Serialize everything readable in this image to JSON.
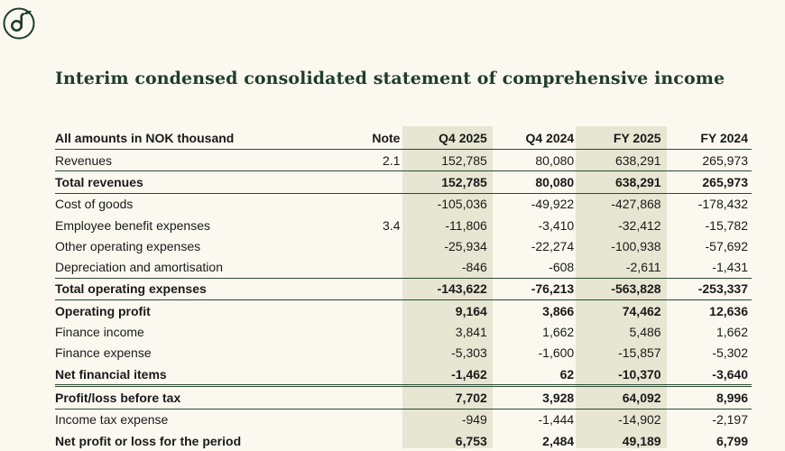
{
  "title": "Interim condensed consolidated statement of comprehensive income",
  "header": {
    "label": "All amounts in NOK thousand",
    "note": "Note",
    "cols": [
      "Q4 2025",
      "Q4 2024",
      "FY 2025",
      "FY 2024"
    ]
  },
  "rows": [
    {
      "label": "Revenues",
      "note": "2.1",
      "values": [
        "152,785",
        "80,080",
        "638,291",
        "265,973"
      ],
      "bold": false
    },
    {
      "label": "Total revenues",
      "note": "",
      "values": [
        "152,785",
        "80,080",
        "638,291",
        "265,973"
      ],
      "bold": true
    },
    {
      "label": "Cost of goods",
      "note": "",
      "values": [
        "-105,036",
        "-49,922",
        "-427,868",
        "-178,432"
      ],
      "bold": false
    },
    {
      "label": "Employee benefit expenses",
      "note": "3.4",
      "values": [
        "-11,806",
        "-3,410",
        "-32,412",
        "-15,782"
      ],
      "bold": false
    },
    {
      "label": "Other operating expenses",
      "note": "",
      "values": [
        "-25,934",
        "-22,274",
        "-100,938",
        "-57,692"
      ],
      "bold": false
    },
    {
      "label": "Depreciation and amortisation",
      "note": "",
      "values": [
        "-846",
        "-608",
        "-2,611",
        "-1,431"
      ],
      "bold": false
    },
    {
      "label": "Total operating expenses",
      "note": "",
      "values": [
        "-143,622",
        "-76,213",
        "-563,828",
        "-253,337"
      ],
      "bold": true
    },
    {
      "label": "Operating profit",
      "note": "",
      "values": [
        "9,164",
        "3,866",
        "74,462",
        "12,636"
      ],
      "bold": true
    },
    {
      "label": "Finance income",
      "note": "",
      "values": [
        "3,841",
        "1,662",
        "5,486",
        "1,662"
      ],
      "bold": false
    },
    {
      "label": "Finance expense",
      "note": "",
      "values": [
        "-5,303",
        "-1,600",
        "-15,857",
        "-5,302"
      ],
      "bold": false
    },
    {
      "label": "Net financial items",
      "note": "",
      "values": [
        "-1,462",
        "62",
        "-10,370",
        "-3,640"
      ],
      "bold": true
    },
    {
      "label": "Profit/loss before tax",
      "note": "",
      "values": [
        "7,702",
        "3,928",
        "64,092",
        "8,996"
      ],
      "bold": true
    },
    {
      "label": "Income tax expense",
      "note": "",
      "values": [
        "-949",
        "-1,444",
        "-14,902",
        "-2,197"
      ],
      "bold": false
    },
    {
      "label": "Net profit or loss for the period",
      "note": "",
      "values": [
        "6,753",
        "2,484",
        "49,189",
        "6,799"
      ],
      "bold": true
    }
  ],
  "colors": {
    "accent": "#1f3d2b",
    "shade": "#e6e6d2",
    "background": "#fbf8f0"
  }
}
